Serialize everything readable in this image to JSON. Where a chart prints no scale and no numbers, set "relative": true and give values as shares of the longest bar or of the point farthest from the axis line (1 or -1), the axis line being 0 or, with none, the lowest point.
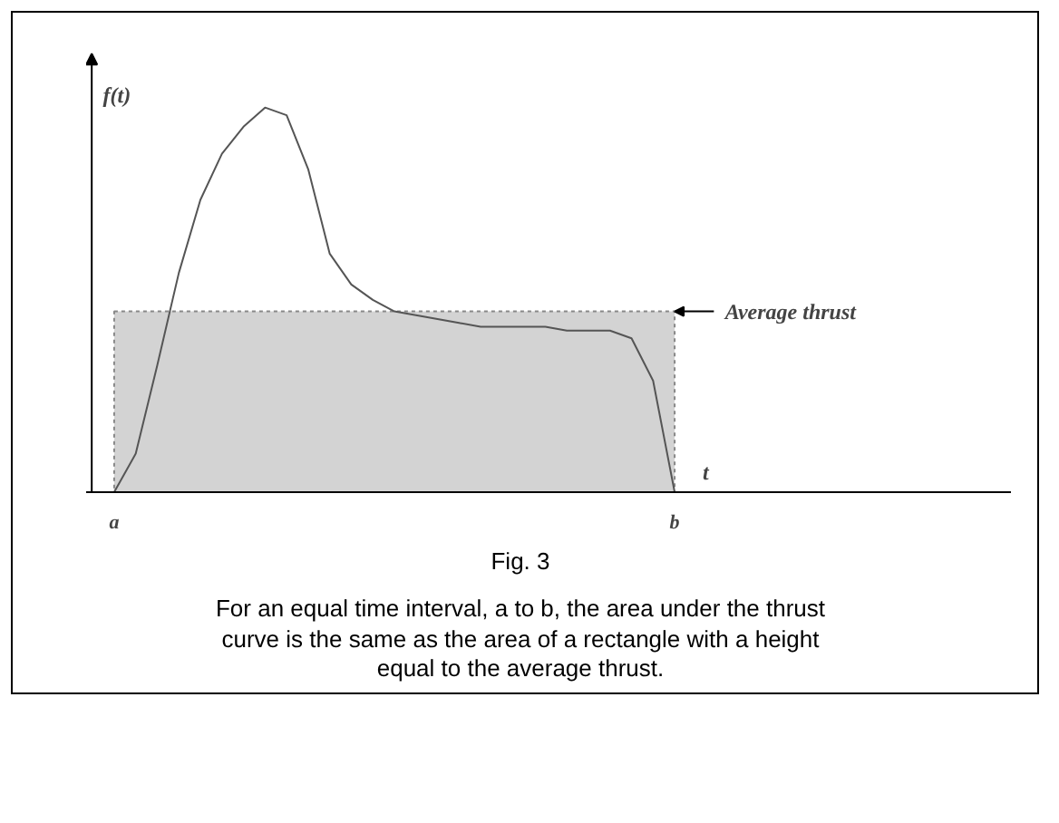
{
  "chart_data": {
    "type": "line",
    "relative": true,
    "xlabel": "t",
    "ylabel": "f(t)",
    "categories": [
      "a",
      null,
      null,
      null,
      null,
      null,
      null,
      null,
      null,
      null,
      null,
      null,
      null,
      null,
      null,
      null,
      null,
      null,
      null,
      null,
      null,
      null,
      null,
      null,
      null,
      null,
      "b"
    ],
    "values": [
      0,
      0.1,
      0.33,
      0.57,
      0.76,
      0.88,
      0.95,
      1.0,
      0.98,
      0.84,
      0.62,
      0.54,
      0.5,
      0.47,
      0.46,
      0.45,
      0.44,
      0.43,
      0.43,
      0.43,
      0.43,
      0.42,
      0.42,
      0.42,
      0.4,
      0.29,
      0
    ],
    "color": "#555555",
    "bands": [
      {
        "axis": "y",
        "from": 0,
        "to": 0.47,
        "label": "Average thrust",
        "color": "#d3d3d3"
      }
    ],
    "grid": false,
    "annotations": [
      "Fig. 3",
      "For an equal time interval, a to b, the area under the thrust curve is the same as the area of a rectangle with a height equal to the average thrust."
    ]
  }
}
